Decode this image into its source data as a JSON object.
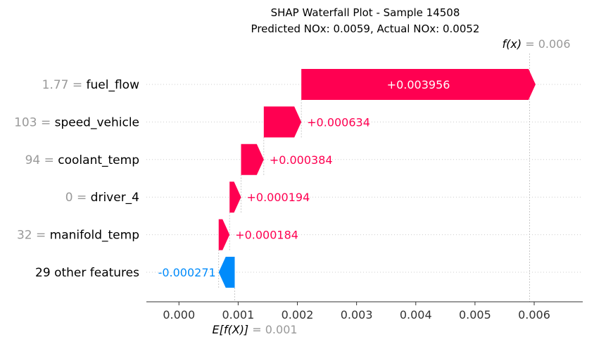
{
  "chart_data": {
    "type": "waterfall",
    "title": "SHAP Waterfall Plot - Sample 14508",
    "subtitle": "Predicted NOx: 0.0059, Actual NOx: 0.0052",
    "base_value": 0.000942,
    "base_label": "= 0.001",
    "base_name": "E[f(X)]",
    "output_value": 0.005923,
    "output_label": "= 0.006",
    "output_name": "f(x)",
    "xlim": [
      -0.00055,
      0.00682
    ],
    "x_ticks": [
      0.0,
      0.001,
      0.002,
      0.003,
      0.004,
      0.005,
      0.006
    ],
    "x_tick_labels": [
      "0.000",
      "0.001",
      "0.002",
      "0.003",
      "0.004",
      "0.005",
      "0.006"
    ],
    "features": [
      {
        "name": "fuel_flow",
        "value": "1.77",
        "contribution": 0.003956,
        "label": "+0.003956"
      },
      {
        "name": "speed_vehicle",
        "value": "103",
        "contribution": 0.000634,
        "label": "+0.000634"
      },
      {
        "name": "coolant_temp",
        "value": "94",
        "contribution": 0.000384,
        "label": "+0.000384"
      },
      {
        "name": "driver_4",
        "value": "0",
        "contribution": 0.000194,
        "label": "+0.000194"
      },
      {
        "name": "manifold_temp",
        "value": "32",
        "contribution": 0.000184,
        "label": "+0.000184"
      },
      {
        "name": "29 other features",
        "value": "",
        "contribution": -0.000271,
        "label": "-0.000271"
      }
    ],
    "colors": {
      "positive": "#ff0051",
      "negative": "#008bfb",
      "muted": "#999999"
    }
  }
}
